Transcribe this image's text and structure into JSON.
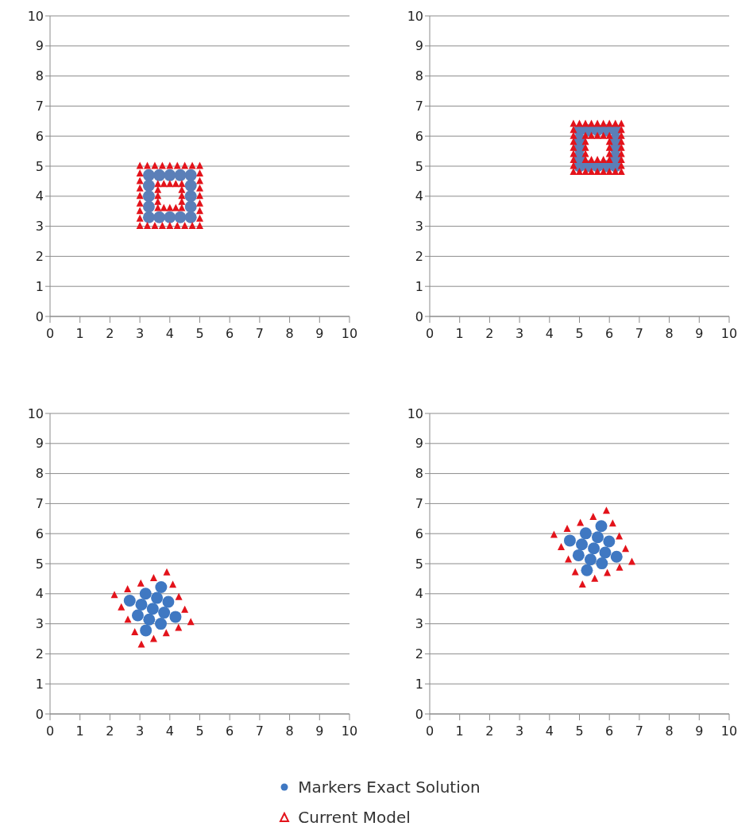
{
  "chart_data": [
    {
      "type": "scatter",
      "xlim": [
        0,
        10
      ],
      "ylim": [
        0,
        10
      ],
      "xticks": [
        0,
        1,
        2,
        3,
        4,
        5,
        6,
        7,
        8,
        9,
        10
      ],
      "yticks": [
        0,
        1,
        2,
        3,
        4,
        5,
        6,
        7,
        8,
        9,
        10
      ],
      "grid": "y",
      "series": [
        {
          "color": "#5b7fb8",
          "marker": "circle",
          "x": [
            3.3,
            3.65,
            4,
            4.35,
            4.7,
            4.7,
            4.7,
            4.7,
            4.7,
            4.35,
            4,
            3.65,
            3.3,
            3.3,
            3.3,
            3.3
          ],
          "values": [
            3.3,
            3.3,
            3.3,
            3.3,
            3.3,
            3.65,
            4,
            4.35,
            4.7,
            4.7,
            4.7,
            4.7,
            4.7,
            4.35,
            4,
            3.65
          ]
        },
        {
          "color": "#e3131b",
          "marker": "triangle",
          "x": [
            3,
            3.25,
            3.5,
            3.75,
            4,
            4.25,
            4.5,
            4.75,
            5,
            5,
            5,
            5,
            5,
            5,
            5,
            5,
            5,
            4.75,
            4.5,
            4.25,
            4,
            3.75,
            3.5,
            3.25,
            3,
            3,
            3,
            3,
            3,
            3,
            3,
            3,
            3.6,
            3.8,
            4,
            4.2,
            4.4,
            4.4,
            4.4,
            4.4,
            4.4,
            4.2,
            4,
            3.8,
            3.6,
            3.6,
            3.6,
            3.6
          ],
          "values": [
            3,
            3,
            3,
            3,
            3,
            3,
            3,
            3,
            3,
            3.25,
            3.5,
            3.75,
            4,
            4.25,
            4.5,
            4.75,
            5,
            5,
            5,
            5,
            5,
            5,
            5,
            5,
            5,
            4.75,
            4.5,
            4.25,
            4,
            3.75,
            3.5,
            3.25,
            3.6,
            3.6,
            3.6,
            3.6,
            3.6,
            3.8,
            4,
            4.2,
            4.4,
            4.4,
            4.4,
            4.4,
            4.4,
            4.2,
            4,
            3.8
          ]
        }
      ]
    },
    {
      "type": "scatter",
      "xlim": [
        0,
        10
      ],
      "ylim": [
        0,
        10
      ],
      "xticks": [
        0,
        1,
        2,
        3,
        4,
        5,
        6,
        7,
        8,
        9,
        10
      ],
      "yticks": [
        0,
        1,
        2,
        3,
        4,
        5,
        6,
        7,
        8,
        9,
        10
      ],
      "grid": "y",
      "series": [
        {
          "color": "#5b7fb8",
          "marker": "circle",
          "x": [
            5,
            5.3,
            5.6,
            5.9,
            6.2,
            6.2,
            6.2,
            6.2,
            6.2,
            5.9,
            5.6,
            5.3,
            5,
            5,
            5,
            5
          ],
          "values": [
            5,
            5,
            5,
            5,
            5,
            5.3,
            5.6,
            5.9,
            6.2,
            6.2,
            6.2,
            6.2,
            6.2,
            5.9,
            5.6,
            5.3
          ]
        },
        {
          "color": "#e3131b",
          "marker": "triangle",
          "x": [
            4.8,
            5,
            5.2,
            5.4,
            5.6,
            5.8,
            6,
            6.2,
            6.4,
            6.4,
            6.4,
            6.4,
            6.4,
            6.4,
            6.4,
            6.4,
            6.4,
            6.2,
            6,
            5.8,
            5.6,
            5.4,
            5.2,
            5,
            4.8,
            4.8,
            4.8,
            4.8,
            4.8,
            4.8,
            4.8,
            4.8,
            5.2,
            5.4,
            5.6,
            5.8,
            6,
            6,
            6,
            6,
            6,
            5.8,
            5.6,
            5.4,
            5.2,
            5.2,
            5.2,
            5.2
          ],
          "values": [
            4.8,
            4.8,
            4.8,
            4.8,
            4.8,
            4.8,
            4.8,
            4.8,
            4.8,
            5,
            5.2,
            5.4,
            5.6,
            5.8,
            6,
            6.2,
            6.4,
            6.4,
            6.4,
            6.4,
            6.4,
            6.4,
            6.4,
            6.4,
            6.4,
            6.2,
            6,
            5.8,
            5.6,
            5.4,
            5.2,
            5,
            5.2,
            5.2,
            5.2,
            5.2,
            5.2,
            5.4,
            5.6,
            5.8,
            6,
            6,
            6,
            6,
            6,
            5.8,
            5.6,
            5.4
          ]
        }
      ]
    },
    {
      "type": "scatter",
      "xlim": [
        0,
        10
      ],
      "ylim": [
        0,
        10
      ],
      "xticks": [
        0,
        1,
        2,
        3,
        4,
        5,
        6,
        7,
        8,
        9,
        10
      ],
      "yticks": [
        0,
        1,
        2,
        3,
        4,
        5,
        6,
        7,
        8,
        9,
        10
      ],
      "grid": "y",
      "series": [
        {
          "color": "#3f78c2",
          "marker": "circle",
          "x": [
            2.66,
            3.19,
            3.71,
            3.95,
            4.19,
            3.7,
            3.2,
            2.93,
            3.05,
            3.57,
            3.81,
            3.31,
            3.43
          ],
          "values": [
            3.77,
            4.0,
            4.22,
            3.73,
            3.23,
            3.0,
            2.78,
            3.28,
            3.64,
            3.86,
            3.37,
            3.14,
            3.5
          ]
        },
        {
          "color": "#e3131b",
          "marker": "triangle",
          "x": [
            2.15,
            2.59,
            3.03,
            3.46,
            3.9,
            4.1,
            4.3,
            4.5,
            4.7,
            4.29,
            3.88,
            3.46,
            3.05,
            2.83,
            2.6,
            2.38
          ],
          "values": [
            3.95,
            4.14,
            4.33,
            4.51,
            4.7,
            4.29,
            3.88,
            3.46,
            3.05,
            2.86,
            2.68,
            2.49,
            2.3,
            2.71,
            3.13,
            3.54
          ]
        }
      ]
    },
    {
      "type": "scatter",
      "xlim": [
        0,
        10
      ],
      "ylim": [
        0,
        10
      ],
      "xticks": [
        0,
        1,
        2,
        3,
        4,
        5,
        6,
        7,
        8,
        9,
        10
      ],
      "yticks": [
        0,
        1,
        2,
        3,
        4,
        5,
        6,
        7,
        8,
        9,
        10
      ],
      "grid": "y",
      "legend": "bottom",
      "series": [
        {
          "name": "Markers Exact Solution",
          "color": "#3f78c2",
          "marker": "circle",
          "x": [
            4.68,
            5.21,
            5.73,
            5.99,
            6.24,
            5.75,
            5.25,
            4.97,
            5.08,
            5.61,
            5.86,
            5.37,
            5.48
          ],
          "values": [
            5.77,
            6.01,
            6.25,
            5.74,
            5.23,
            5.01,
            4.78,
            5.28,
            5.64,
            5.88,
            5.37,
            5.14,
            5.51
          ]
        },
        {
          "name": "Current Model",
          "color": "#e3131b",
          "marker": "triangle",
          "x": [
            4.15,
            4.59,
            5.03,
            5.46,
            5.9,
            6.11,
            6.33,
            6.54,
            6.75,
            6.34,
            5.93,
            5.51,
            5.1,
            4.86,
            4.63,
            4.39
          ],
          "values": [
            5.95,
            6.15,
            6.35,
            6.55,
            6.75,
            6.33,
            5.9,
            5.48,
            5.05,
            4.86,
            4.68,
            4.49,
            4.3,
            4.71,
            5.13,
            5.54
          ]
        }
      ]
    }
  ]
}
